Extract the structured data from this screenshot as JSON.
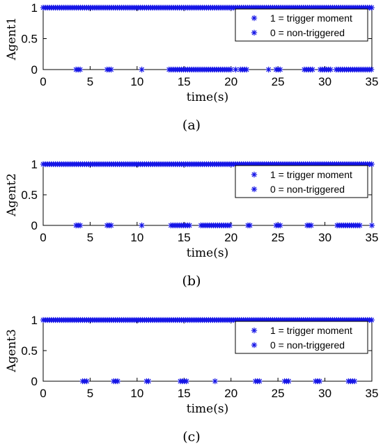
{
  "colors": {
    "marker": "#1414e6",
    "axis": "#000000",
    "background": "#ffffff"
  },
  "xlabel": "time(s)",
  "legend": {
    "items": [
      "1 = trigger moment",
      "0 = non-triggered"
    ],
    "placement": "top-right"
  },
  "chart_data": [
    {
      "type": "scatter",
      "caption": "(a)",
      "ylabel": "Agent1",
      "xlim": [
        0,
        35
      ],
      "ylim": [
        0,
        1
      ],
      "xticks": [
        0,
        5,
        10,
        15,
        20,
        25,
        30,
        35
      ],
      "yticks": [
        0,
        0.5,
        1
      ],
      "grid": false,
      "marker": "*",
      "trigger_value": 1,
      "non_trigger_value": 0,
      "trigger_value_intervals_s": [
        [
          0,
          35
        ]
      ],
      "non_triggered_intervals_s": [
        [
          3.5,
          4.0
        ],
        [
          6.8,
          7.4
        ],
        [
          10.5,
          10.6
        ],
        [
          13.4,
          20.0
        ],
        [
          21.0,
          21.8
        ],
        [
          24.8,
          25.4
        ],
        [
          27.8,
          28.7
        ],
        [
          29.5,
          30.6
        ],
        [
          31.2,
          35.0
        ]
      ],
      "isolated_triggered_points_s": [
        20.5,
        24.0
      ]
    },
    {
      "type": "scatter",
      "caption": "(b)",
      "ylabel": "Agent2",
      "xlim": [
        0,
        35
      ],
      "ylim": [
        0,
        1
      ],
      "xticks": [
        0,
        5,
        10,
        15,
        20,
        25,
        30,
        35
      ],
      "yticks": [
        0,
        0.5,
        1
      ],
      "grid": false,
      "marker": "*",
      "trigger_value": 1,
      "non_trigger_value": 0,
      "trigger_value_intervals_s": [
        [
          0,
          35
        ]
      ],
      "non_triggered_intervals_s": [
        [
          3.5,
          4.0
        ],
        [
          6.8,
          7.4
        ],
        [
          10.5,
          10.6
        ],
        [
          13.6,
          15.6
        ],
        [
          16.8,
          20.0
        ],
        [
          21.8,
          22.2
        ],
        [
          24.8,
          25.3
        ],
        [
          28.1,
          28.7
        ],
        [
          31.3,
          33.9
        ],
        [
          35.0,
          35.0
        ]
      ],
      "isolated_triggered_points_s": []
    },
    {
      "type": "scatter",
      "caption": "(c)",
      "ylabel": "Agent3",
      "xlim": [
        0,
        35
      ],
      "ylim": [
        0,
        1
      ],
      "xticks": [
        0,
        5,
        10,
        15,
        20,
        25,
        30,
        35
      ],
      "yticks": [
        0,
        0.5,
        1
      ],
      "grid": false,
      "marker": "*",
      "trigger_value": 1,
      "non_trigger_value": 0,
      "trigger_value_intervals_s": [
        [
          0,
          35
        ]
      ],
      "non_triggered_intervals_s": [
        [
          4.2,
          4.8
        ],
        [
          7.5,
          8.0
        ],
        [
          11.0,
          11.4
        ],
        [
          14.6,
          15.3
        ],
        [
          18.3,
          18.4
        ],
        [
          22.6,
          23.1
        ],
        [
          25.7,
          26.2
        ],
        [
          29.0,
          29.6
        ],
        [
          32.5,
          33.3
        ]
      ],
      "isolated_triggered_points_s": []
    }
  ]
}
